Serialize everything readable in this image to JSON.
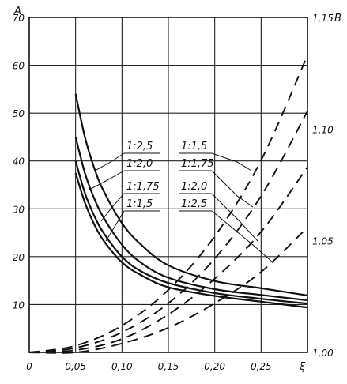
{
  "chart_data": {
    "type": "line",
    "title": "",
    "xlabel": "ξ",
    "ylabel_left": "A",
    "ylabel_right": "B",
    "xlim": [
      0,
      0.3
    ],
    "ylim_left": [
      0,
      70
    ],
    "ylim_right": [
      1.0,
      1.15
    ],
    "x_ticks": [
      "0",
      "0,05",
      "0,10",
      "0,15",
      "0,20",
      "0,25"
    ],
    "y_left_ticks": [
      "10",
      "20",
      "30",
      "40",
      "50",
      "60",
      "70"
    ],
    "y_right_ticks": [
      "1,00",
      "1,05",
      "1,10",
      "1,15"
    ],
    "grid": true,
    "series_A": [
      {
        "name": "1:2,5",
        "style": "solid",
        "axis": "left",
        "x": [
          0.05,
          0.06,
          0.07,
          0.08,
          0.1,
          0.12,
          0.15,
          0.2,
          0.25,
          0.3
        ],
        "y": [
          54.0,
          45.0,
          38.6,
          33.8,
          27.0,
          22.6,
          18.2,
          14.9,
          13.4,
          11.9
        ]
      },
      {
        "name": "1:2,0",
        "style": "solid",
        "axis": "left",
        "x": [
          0.05,
          0.06,
          0.07,
          0.08,
          0.1,
          0.12,
          0.15,
          0.2,
          0.25,
          0.3
        ],
        "y": [
          45.0,
          37.5,
          32.2,
          28.2,
          22.5,
          18.8,
          15.6,
          13.2,
          12.0,
          10.9
        ]
      },
      {
        "name": "1:1,75",
        "style": "solid",
        "axis": "left",
        "x": [
          0.05,
          0.06,
          0.07,
          0.08,
          0.1,
          0.12,
          0.15,
          0.2,
          0.25,
          0.3
        ],
        "y": [
          40.0,
          33.3,
          28.6,
          25.0,
          20.0,
          17.0,
          14.5,
          12.4,
          11.2,
          10.2
        ]
      },
      {
        "name": "1:1,5",
        "style": "solid",
        "axis": "left",
        "x": [
          0.05,
          0.06,
          0.07,
          0.08,
          0.1,
          0.12,
          0.15,
          0.2,
          0.25,
          0.3
        ],
        "y": [
          37.5,
          31.3,
          26.8,
          23.4,
          18.8,
          16.2,
          13.6,
          11.8,
          10.6,
          9.4
        ]
      }
    ],
    "series_B": [
      {
        "name": "1:1,5",
        "style": "dashed",
        "axis": "right",
        "x": [
          0.0,
          0.05,
          0.1,
          0.15,
          0.2,
          0.25,
          0.3
        ],
        "y": [
          1.0,
          1.003,
          1.012,
          1.028,
          1.052,
          1.086,
          1.133
        ]
      },
      {
        "name": "1:1,75",
        "style": "dashed",
        "axis": "right",
        "x": [
          0.0,
          0.05,
          0.1,
          0.15,
          0.2,
          0.25,
          0.3
        ],
        "y": [
          1.0,
          1.002,
          1.009,
          1.022,
          1.042,
          1.07,
          1.108
        ]
      },
      {
        "name": "1:2,0",
        "style": "dashed",
        "axis": "right",
        "x": [
          0.0,
          0.05,
          0.1,
          0.15,
          0.2,
          0.25,
          0.3
        ],
        "y": [
          1.0,
          1.001,
          1.006,
          1.017,
          1.033,
          1.054,
          1.083
        ]
      },
      {
        "name": "1:2,5",
        "style": "dashed",
        "axis": "right",
        "x": [
          0.0,
          0.05,
          0.1,
          0.15,
          0.2,
          0.25,
          0.3
        ],
        "y": [
          1.0,
          1.0,
          1.004,
          1.011,
          1.022,
          1.036,
          1.056
        ]
      }
    ]
  }
}
